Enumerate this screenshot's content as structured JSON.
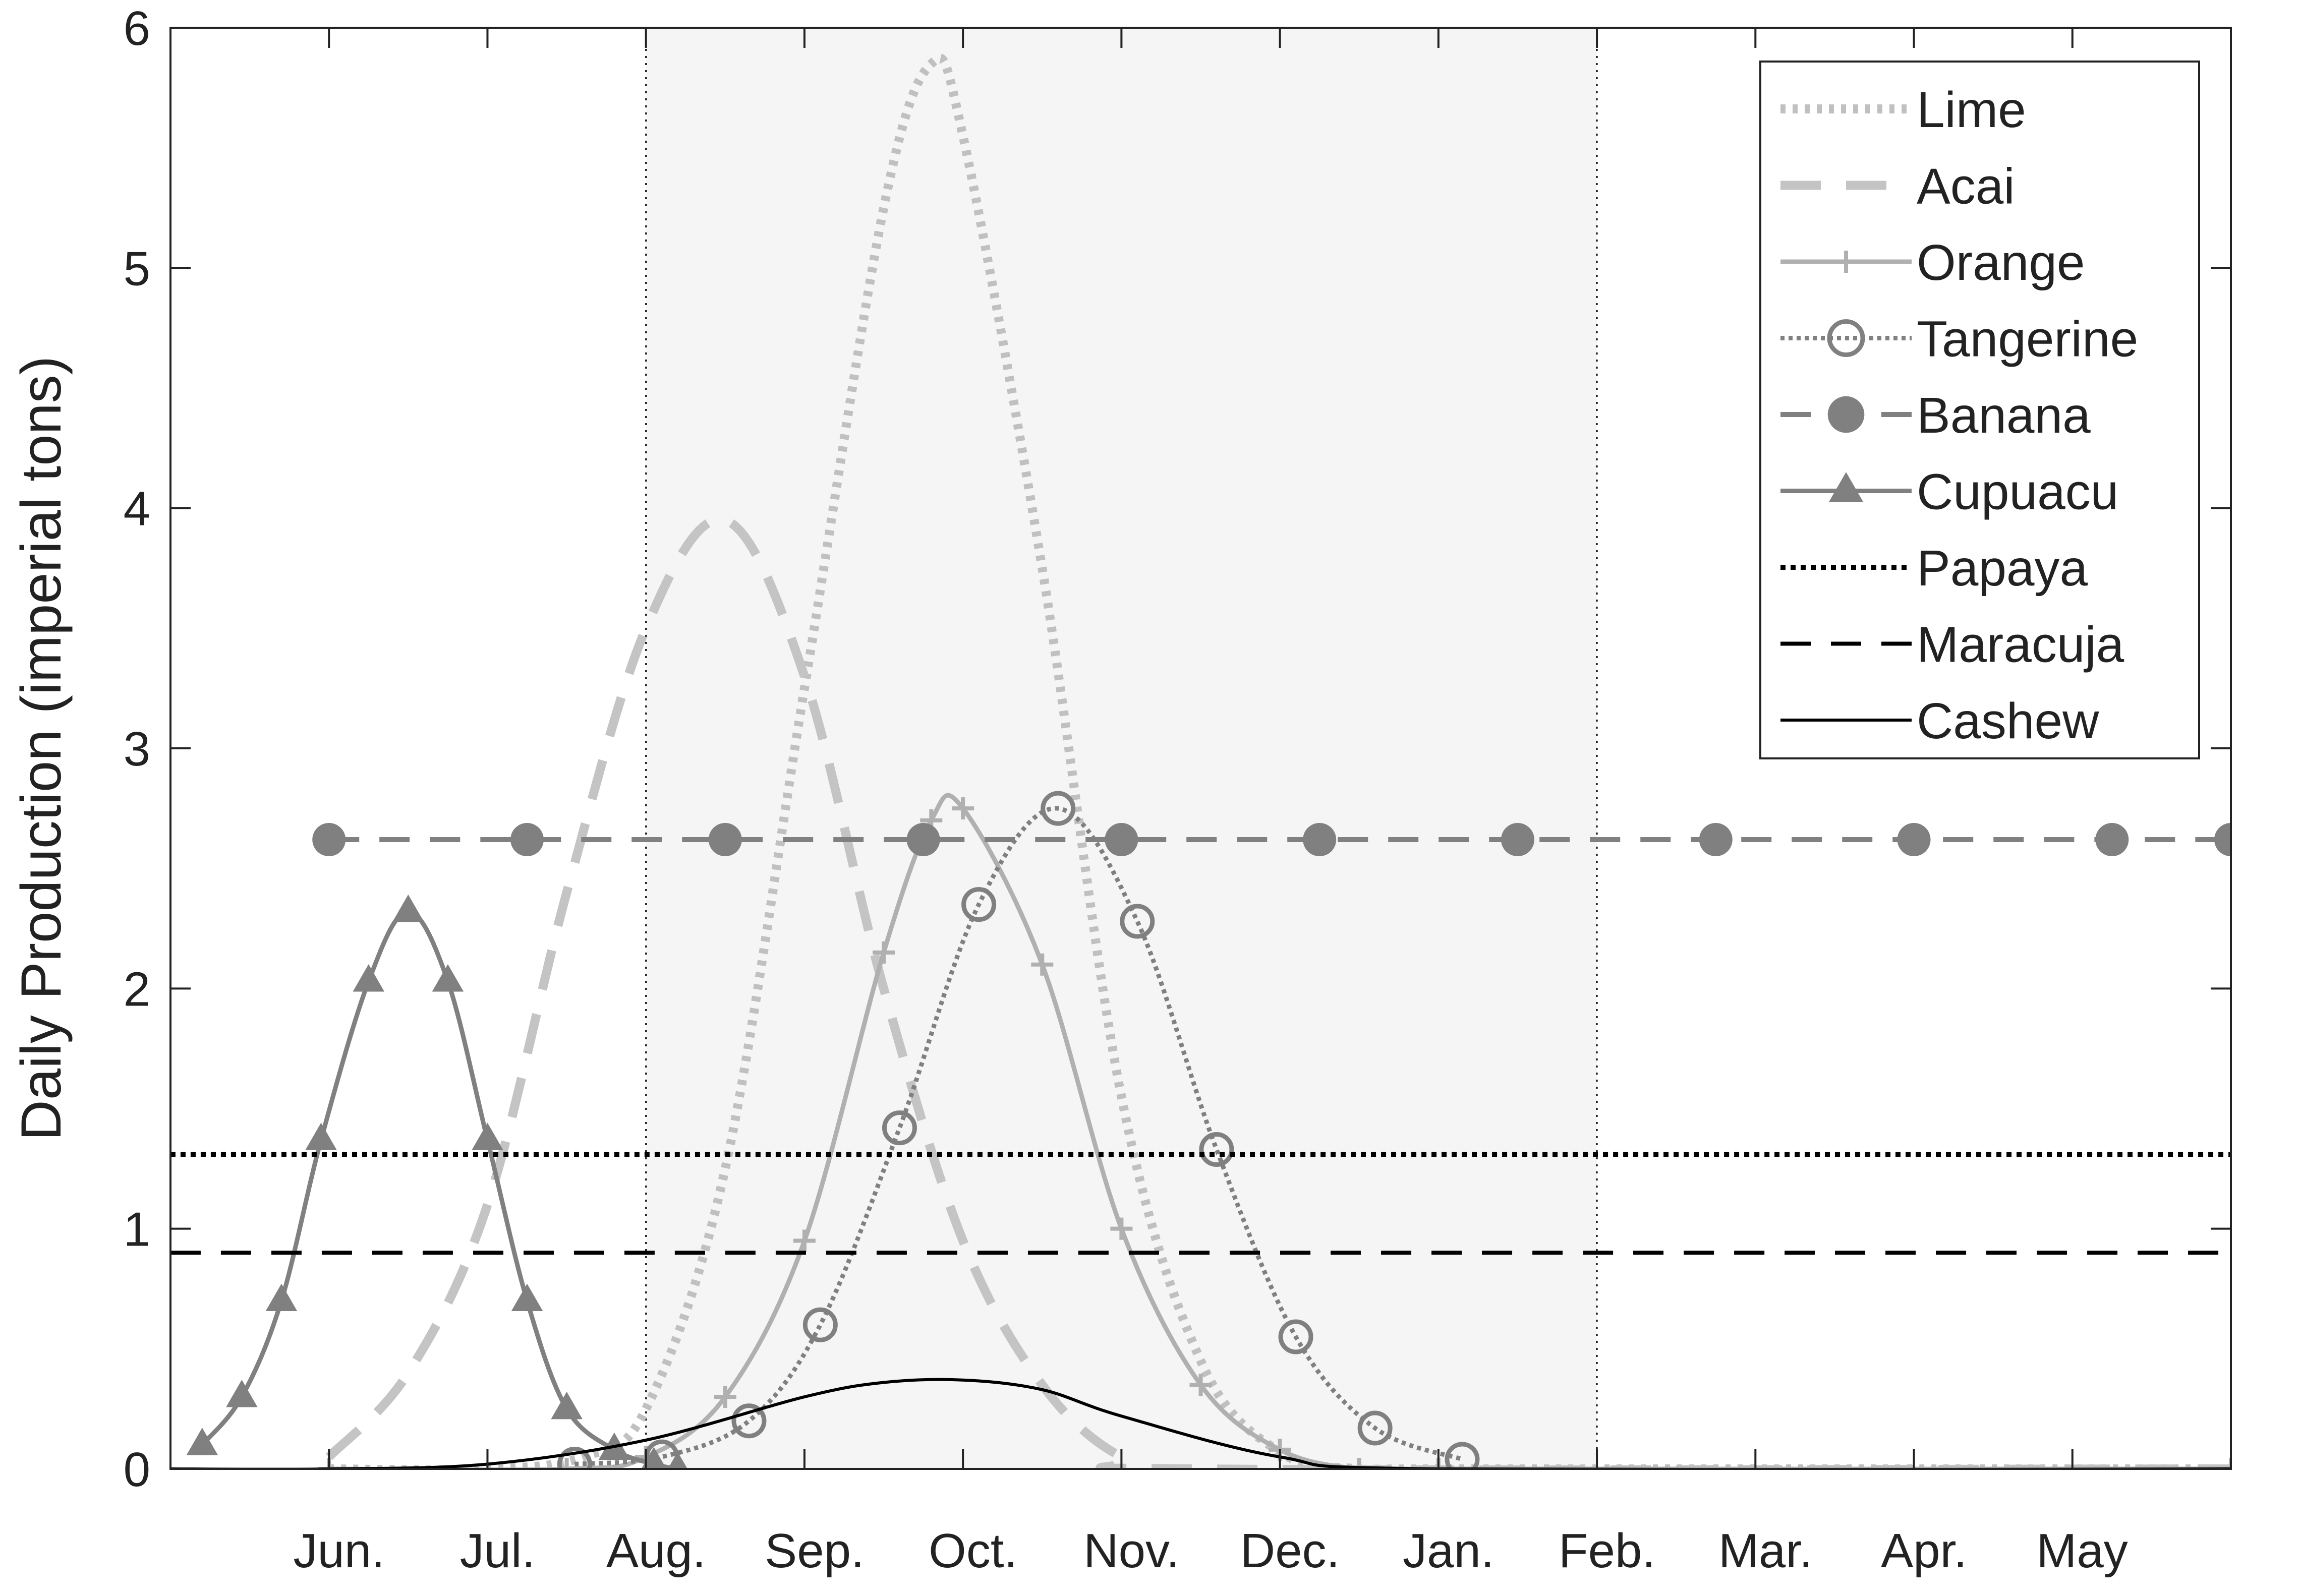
{
  "chart_data": {
    "type": "line",
    "title": "",
    "xlabel": "",
    "ylabel": "Daily Production (imperial tons)",
    "xlim": [
      "May",
      "May"
    ],
    "ylim": [
      0,
      6
    ],
    "ytick_labels": [
      "0",
      "1",
      "2",
      "3",
      "4",
      "5",
      "6"
    ],
    "xtick_labels": [
      "Jun.",
      "Jul.",
      "Aug.",
      "Sep.",
      "Oct.",
      "Nov.",
      "Dec.",
      "Jan.",
      "Feb.",
      "Mar.",
      "Apr.",
      "May"
    ],
    "shaded_region": {
      "from": "Aug.",
      "to": "Feb.",
      "color": "#f5f5f5"
    },
    "grid": false,
    "legend_position": "top-right",
    "series": [
      {
        "name": "Lime",
        "style": "dotted",
        "color": "#c0c0c0",
        "x": [
          0.0,
          1.0,
          1.6,
          2.0,
          2.5,
          3.0,
          3.5,
          3.8,
          4.0,
          4.5,
          5.0,
          5.5,
          6.0,
          6.5,
          7.0,
          12.0
        ],
        "values": [
          0.0,
          0.0,
          0.05,
          0.25,
          1.25,
          3.25,
          5.25,
          5.85,
          5.55,
          3.75,
          1.55,
          0.45,
          0.07,
          0.0,
          0.0,
          0.0
        ]
      },
      {
        "name": "Acai",
        "style": "dashed",
        "color": "#c4c4c4",
        "x": [
          0.0,
          0.5,
          1.0,
          1.5,
          2.0,
          2.5,
          3.0,
          3.5,
          4.0,
          4.5,
          5.0,
          5.5,
          12.0
        ],
        "values": [
          0.05,
          0.4,
          1.1,
          2.4,
          3.5,
          3.95,
          3.3,
          2.0,
          0.95,
          0.35,
          0.05,
          0.0,
          0.0
        ]
      },
      {
        "name": "Orange",
        "style": "solid-plus",
        "color": "#b0b0b0",
        "x": [
          0.0,
          1.5,
          2.0,
          2.5,
          3.0,
          3.5,
          3.8,
          4.0,
          4.5,
          5.0,
          5.5,
          6.0,
          6.5,
          7.0,
          12.0
        ],
        "values": [
          0.0,
          0.0,
          0.05,
          0.3,
          0.95,
          2.15,
          2.7,
          2.75,
          2.1,
          1.0,
          0.35,
          0.08,
          0.0,
          0.0,
          0.0
        ]
      },
      {
        "name": "Tangerine",
        "style": "dotted-circle",
        "color": "#808080",
        "x": [
          1.55,
          2.1,
          2.65,
          3.1,
          3.6,
          4.1,
          4.6,
          5.1,
          5.6,
          6.1,
          6.6,
          7.15
        ],
        "values": [
          0.02,
          0.05,
          0.2,
          0.6,
          1.42,
          2.35,
          2.75,
          2.28,
          1.33,
          0.55,
          0.17,
          0.04
        ]
      },
      {
        "name": "Banana",
        "style": "dashed-dot",
        "color": "#808080",
        "x": [
          0.0,
          1.25,
          2.5,
          3.75,
          5.0,
          6.25,
          7.5,
          8.75,
          10.0,
          11.25,
          12.0
        ],
        "values": [
          2.62,
          2.62,
          2.62,
          2.62,
          2.62,
          2.62,
          2.62,
          2.62,
          2.62,
          2.62,
          2.62
        ]
      },
      {
        "name": "Cupuacu",
        "style": "solid-triangle",
        "color": "#808080",
        "x": [
          -0.8,
          -0.55,
          -0.3,
          -0.05,
          0.25,
          0.5,
          0.75,
          1.0,
          1.25,
          1.5,
          1.8,
          2.05,
          2.2
        ],
        "values": [
          0.1,
          0.3,
          0.7,
          1.37,
          2.03,
          2.32,
          2.03,
          1.37,
          0.7,
          0.25,
          0.08,
          0.02,
          0.0
        ]
      },
      {
        "name": "Papaya",
        "style": "dotted-black",
        "color": "#000000",
        "x": [
          -1.0,
          12.0
        ],
        "values": [
          1.31,
          1.31
        ]
      },
      {
        "name": "Maracuja",
        "style": "dashed-black",
        "color": "#000000",
        "x": [
          -1.0,
          12.0
        ],
        "values": [
          0.9,
          0.9
        ]
      },
      {
        "name": "Cashew",
        "style": "solid-black",
        "color": "#000000",
        "x": [
          -1.0,
          0.0,
          1.0,
          2.0,
          3.0,
          3.5,
          4.0,
          4.5,
          5.0,
          6.0,
          7.0,
          12.0
        ],
        "values": [
          0.0,
          0.0,
          0.02,
          0.12,
          0.3,
          0.36,
          0.37,
          0.33,
          0.22,
          0.05,
          0.0,
          0.0
        ]
      }
    ]
  }
}
